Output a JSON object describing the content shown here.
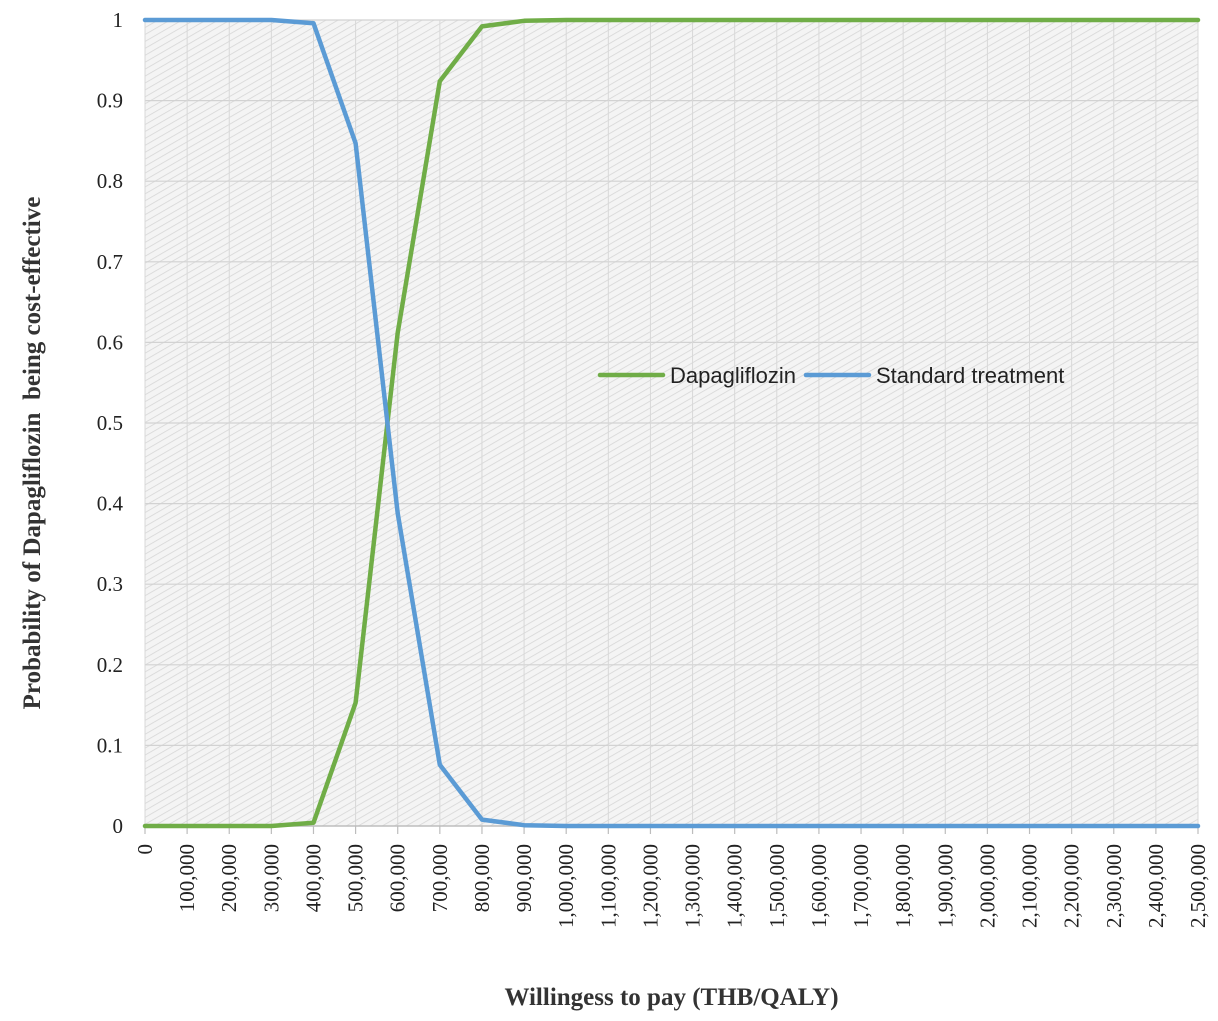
{
  "chart_data": {
    "type": "line",
    "title": "",
    "xlabel": "Willingess to pay (THB/QALY)",
    "ylabel": "Probability of Dapagliflozin  being cost-effective",
    "x": [
      0,
      100000,
      200000,
      300000,
      400000,
      500000,
      600000,
      700000,
      800000,
      900000,
      1000000,
      1100000,
      1200000,
      1300000,
      1400000,
      1500000,
      1600000,
      1700000,
      1800000,
      1900000,
      2000000,
      2100000,
      2200000,
      2300000,
      2400000,
      2500000
    ],
    "x_tick_labels": [
      "0",
      "100,000",
      "200,000",
      "300,000",
      "400,000",
      "500,000",
      "600,000",
      "700,000",
      "800,000",
      "900,000",
      "1,000,000",
      "1,100,000",
      "1,200,000",
      "1,300,000",
      "1,400,000",
      "1,500,000",
      "1,600,000",
      "1,700,000",
      "1,800,000",
      "1,900,000",
      "2,000,000",
      "2,100,000",
      "2,200,000",
      "2,300,000",
      "2,400,000",
      "2,500,000"
    ],
    "y_tick_labels": [
      "0",
      "0.1",
      "0.2",
      "0.3",
      "0.4",
      "0.5",
      "0.6",
      "0.7",
      "0.8",
      "0.9",
      "1"
    ],
    "ylim": [
      0,
      1
    ],
    "grid": true,
    "legend_position": "center-right",
    "series": [
      {
        "name": "Dapagliflozin",
        "color": "#70AD47",
        "values": [
          0,
          0,
          0,
          0,
          0.004,
          0.153,
          0.612,
          0.924,
          0.992,
          0.999,
          1,
          1,
          1,
          1,
          1,
          1,
          1,
          1,
          1,
          1,
          1,
          1,
          1,
          1,
          1,
          1
        ]
      },
      {
        "name": "Standard treatment",
        "color": "#5B9BD5",
        "values": [
          1,
          1,
          1,
          1,
          0.996,
          0.847,
          0.388,
          0.076,
          0.008,
          0.001,
          0,
          0,
          0,
          0,
          0,
          0,
          0,
          0,
          0,
          0,
          0,
          0,
          0,
          0,
          0,
          0
        ]
      }
    ]
  }
}
